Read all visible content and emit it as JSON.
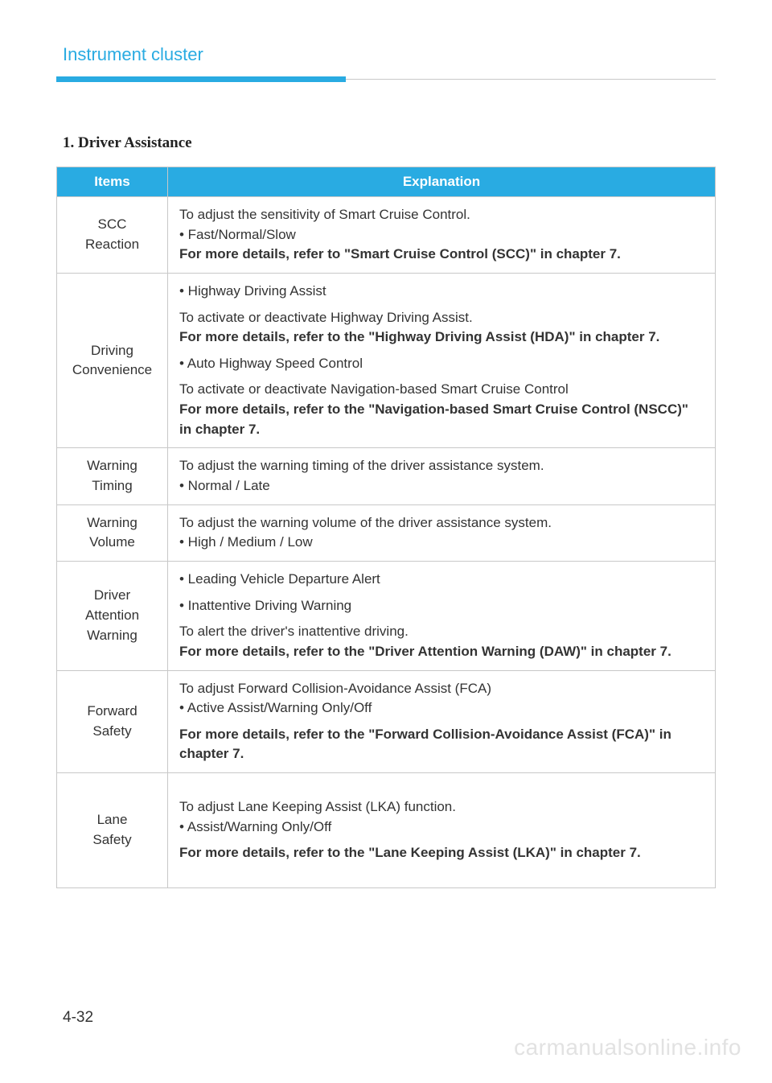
{
  "header": {
    "title": "Instrument cluster",
    "bar_blue_color": "#29abe2",
    "bar_gray_color": "#c8c8c8"
  },
  "section": {
    "heading": "1.  Driver Assistance"
  },
  "table": {
    "header_bg": "#29abe2",
    "header_fg": "#ffffff",
    "border_color": "#c8c8c8",
    "columns": [
      "Items",
      "Explanation"
    ],
    "rows": [
      {
        "item": "SCC Reaction",
        "lines": [
          {
            "text": "To adjust the sensitivity of Smart Cruise Control.",
            "bold": false
          },
          {
            "text": "• Fast/Normal/Slow",
            "bold": false
          },
          {
            "text": "For more details, refer to \"Smart Cruise Control (SCC)\" in chapter 7.",
            "bold": true
          }
        ]
      },
      {
        "item": "Driving Convenience",
        "lines": [
          {
            "text": "• Highway Driving Assist",
            "bold": false,
            "gap": true
          },
          {
            "text": "To activate or deactivate Highway Driving Assist.",
            "bold": false
          },
          {
            "text": "For more details, refer to the \"Highway Driving Assist (HDA)\" in chapter 7.",
            "bold": true,
            "gap": true
          },
          {
            "text": "• Auto Highway Speed Control",
            "bold": false,
            "gap": true
          },
          {
            "text": "To activate or deactivate Navigation-based Smart Cruise Control",
            "bold": false
          },
          {
            "text": "For more details, refer to the \"Navigation-based Smart Cruise Control (NSCC)\" in chapter 7.",
            "bold": true
          }
        ]
      },
      {
        "item": "Warning Timing",
        "lines": [
          {
            "text": "To adjust the warning timing of the driver assistance system.",
            "bold": false
          },
          {
            "text": "• Normal / Late",
            "bold": false
          }
        ]
      },
      {
        "item": "Warning Volume",
        "lines": [
          {
            "text": "To adjust the warning volume of the driver assistance system.",
            "bold": false
          },
          {
            "text": "• High / Medium / Low",
            "bold": false
          }
        ]
      },
      {
        "item": "Driver Attention Warning",
        "lines": [
          {
            "text": "• Leading Vehicle Departure Alert",
            "bold": false,
            "gap": true
          },
          {
            "text": "• Inattentive Driving Warning",
            "bold": false,
            "gap": true
          },
          {
            "text": "To alert the driver's inattentive driving.",
            "bold": false
          },
          {
            "text": "For more details, refer to the \"Driver Attention Warning (DAW)\" in chapter 7.",
            "bold": true
          }
        ]
      },
      {
        "item": "Forward Safety",
        "lines": [
          {
            "text": "To adjust Forward Collision-Avoidance Assist (FCA)",
            "bold": false
          },
          {
            "text": "• Active Assist/Warning Only/Off",
            "bold": false,
            "gap": true
          },
          {
            "text": "For more details, refer to the \"Forward Collision-Avoidance Assist (FCA)\" in chapter 7.",
            "bold": true
          }
        ]
      },
      {
        "item": "Lane Safety",
        "lines": [
          {
            "text": "To adjust Lane Keeping Assist (LKA) function.",
            "bold": false
          },
          {
            "text": "• Assist/Warning Only/Off",
            "bold": false,
            "gap": true
          },
          {
            "text": "For more details, refer to the \"Lane Keeping Assist (LKA)\" in chapter 7.",
            "bold": true
          }
        ],
        "tall": true
      }
    ]
  },
  "footer": {
    "page_number": "4-32",
    "watermark": "carmanualsonline.info"
  }
}
